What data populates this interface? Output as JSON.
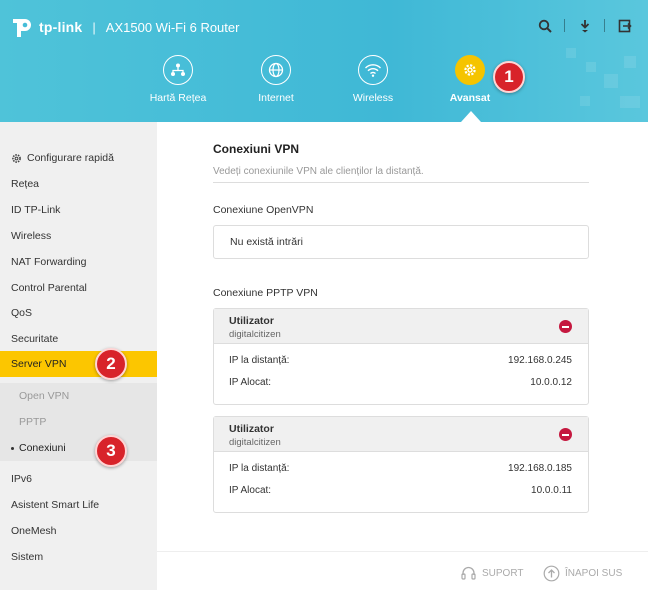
{
  "header": {
    "brand": "tp-link",
    "separator": "|",
    "model": "AX1500 Wi-Fi 6 Router",
    "icons": [
      "search-icon",
      "download-icon",
      "logout-icon"
    ]
  },
  "nav": [
    {
      "label": "Hartă Rețea",
      "icon": "network-map-icon"
    },
    {
      "label": "Internet",
      "icon": "globe-icon"
    },
    {
      "label": "Wireless",
      "icon": "wifi-icon"
    },
    {
      "label": "Avansat",
      "icon": "gear-icon",
      "active": true
    }
  ],
  "badges": [
    "1",
    "2",
    "3"
  ],
  "sidebar": {
    "items": [
      {
        "label": "Configurare rapidă",
        "icon": "gear-icon"
      },
      {
        "label": "Rețea"
      },
      {
        "label": "ID TP-Link"
      },
      {
        "label": "Wireless"
      },
      {
        "label": "NAT Forwarding"
      },
      {
        "label": "Control Parental"
      },
      {
        "label": "QoS"
      },
      {
        "label": "Securitate"
      },
      {
        "label": "Server VPN",
        "active": true
      },
      {
        "label": "IPv6"
      },
      {
        "label": "Asistent Smart Life"
      },
      {
        "label": "OneMesh"
      },
      {
        "label": "Sistem"
      }
    ],
    "subitems": [
      {
        "label": "Open VPN"
      },
      {
        "label": "PPTP"
      },
      {
        "label": "Conexiuni",
        "current": true
      }
    ]
  },
  "main": {
    "title": "Conexiuni VPN",
    "description": "Vedeți conexiunile VPN ale clienților la distanță.",
    "openvpn": {
      "label": "Conexiune OpenVPN",
      "empty": "Nu există intrări"
    },
    "pptp": {
      "label": "Conexiune PPTP VPN",
      "user_label": "Utilizator",
      "remote_ip_label": "IP la distanță:",
      "assigned_ip_label": "IP Alocat:",
      "connections": [
        {
          "user": "digitalcitizen",
          "remote_ip": "192.168.0.245",
          "assigned_ip": "10.0.0.12"
        },
        {
          "user": "digitalcitizen",
          "remote_ip": "192.168.0.185",
          "assigned_ip": "10.0.0.11"
        }
      ]
    }
  },
  "footer": {
    "support": "SUPORT",
    "back_to_top": "ÎNAPOI SUS"
  },
  "colors": {
    "header": "#3fb8d6",
    "accent": "#fcc600",
    "badge": "#d8232a",
    "delete": "#c5183f"
  }
}
